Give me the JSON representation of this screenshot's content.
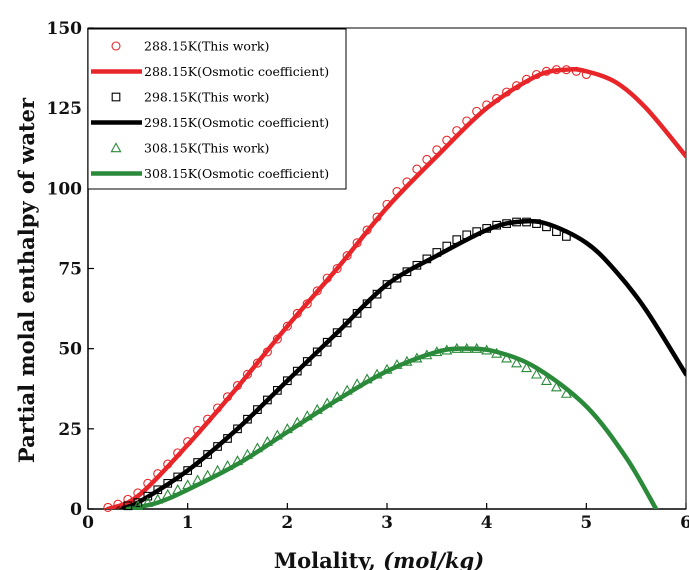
{
  "chart_data": {
    "type": "scatter",
    "xlabel_prefix": "Molality, ",
    "xlabel_unit": "(mol/kg)",
    "ylabel": "Partial molal enthalpy of water",
    "xlim": [
      0,
      6
    ],
    "ylim": [
      0,
      150
    ],
    "xticks": [
      "0",
      "1",
      "2",
      "3",
      "4",
      "5",
      "6"
    ],
    "yticks": [
      "0",
      "25",
      "50",
      "75",
      "100",
      "125",
      "150"
    ],
    "grid": false,
    "legend_position": "top-left",
    "series": [
      {
        "name": "288.15K(This work)",
        "kind": "markers",
        "marker": "circle",
        "color": "#e8262a",
        "x": [
          0.2,
          0.3,
          0.4,
          0.5,
          0.6,
          0.7,
          0.8,
          0.9,
          1.0,
          1.1,
          1.2,
          1.3,
          1.4,
          1.5,
          1.6,
          1.7,
          1.8,
          1.9,
          2.0,
          2.1,
          2.2,
          2.3,
          2.4,
          2.5,
          2.6,
          2.7,
          2.8,
          2.9,
          3.0,
          3.1,
          3.2,
          3.3,
          3.4,
          3.5,
          3.6,
          3.7,
          3.8,
          3.9,
          4.0,
          4.1,
          4.2,
          4.3,
          4.4,
          4.5,
          4.6,
          4.7,
          4.8,
          4.9,
          5.0
        ],
        "y": [
          0.5,
          1.5,
          3,
          5,
          8,
          11,
          14,
          17.5,
          21,
          24.5,
          28,
          31.5,
          35,
          38.5,
          42,
          45.5,
          49,
          53,
          57,
          61,
          64,
          68,
          72,
          75,
          79,
          83,
          87,
          91,
          95,
          99,
          102,
          106,
          109,
          112,
          115,
          118,
          121,
          124,
          126,
          128,
          130,
          132,
          134,
          135.5,
          136.5,
          137,
          137,
          136.5,
          135.5
        ]
      },
      {
        "name": "288.15K(Osmotic coefficient)",
        "kind": "line",
        "color": "#e8262a",
        "x": [
          0.2,
          0.5,
          1.0,
          1.5,
          2.0,
          2.5,
          3.0,
          3.5,
          4.0,
          4.5,
          4.8,
          5.0,
          5.3,
          5.6,
          6.0
        ],
        "y": [
          0,
          4,
          20,
          38,
          57,
          75,
          94,
          110,
          125,
          135,
          137,
          136.5,
          133,
          125,
          110
        ]
      },
      {
        "name": "298.15K(This work)",
        "kind": "markers",
        "marker": "square",
        "color": "#000000",
        "x": [
          0.4,
          0.5,
          0.6,
          0.7,
          0.8,
          0.9,
          1.0,
          1.1,
          1.2,
          1.3,
          1.4,
          1.5,
          1.6,
          1.7,
          1.8,
          1.9,
          2.0,
          2.1,
          2.2,
          2.3,
          2.4,
          2.5,
          2.6,
          2.7,
          2.8,
          2.9,
          3.0,
          3.1,
          3.2,
          3.3,
          3.4,
          3.5,
          3.6,
          3.7,
          3.8,
          3.9,
          4.0,
          4.1,
          4.2,
          4.3,
          4.4,
          4.5,
          4.6,
          4.7,
          4.8
        ],
        "y": [
          1,
          2,
          4,
          6,
          8,
          10,
          12,
          14.5,
          17,
          19.5,
          22,
          25,
          28,
          31,
          34,
          37,
          40,
          43,
          46,
          49,
          52,
          55,
          58,
          61,
          64,
          67,
          70,
          72,
          74,
          76,
          78,
          80,
          82,
          84,
          85.5,
          86.5,
          87.5,
          88.5,
          89,
          89.5,
          89.5,
          89,
          88,
          86.5,
          85
        ]
      },
      {
        "name": "298.15K(Osmotic coefficient)",
        "kind": "line",
        "color": "#000000",
        "x": [
          0.3,
          0.5,
          1.0,
          1.5,
          2.0,
          2.5,
          3.0,
          3.5,
          4.0,
          4.3,
          4.6,
          5.0,
          5.3,
          5.6,
          6.0
        ],
        "y": [
          0,
          2,
          12,
          25,
          40,
          55,
          70,
          79,
          87,
          89.5,
          89,
          83,
          74,
          62,
          42
        ]
      },
      {
        "name": "308.15K(This work)",
        "kind": "markers",
        "marker": "triangle",
        "color": "#2a8a3a",
        "x": [
          0.5,
          0.6,
          0.7,
          0.8,
          0.9,
          1.0,
          1.1,
          1.2,
          1.3,
          1.4,
          1.5,
          1.6,
          1.7,
          1.8,
          1.9,
          2.0,
          2.1,
          2.2,
          2.3,
          2.4,
          2.5,
          2.6,
          2.7,
          2.8,
          2.9,
          3.0,
          3.1,
          3.2,
          3.3,
          3.4,
          3.5,
          3.6,
          3.7,
          3.8,
          3.9,
          4.0,
          4.1,
          4.2,
          4.3,
          4.4,
          4.5,
          4.6,
          4.7,
          4.8
        ],
        "y": [
          1,
          2,
          3,
          4.5,
          6,
          7.5,
          9,
          10.5,
          12,
          13.5,
          15,
          17,
          19,
          21,
          23,
          25,
          27,
          29,
          31,
          33,
          35,
          37,
          39,
          40.5,
          42,
          43.5,
          45,
          46,
          47,
          48,
          49,
          49.5,
          50,
          50,
          50,
          49.5,
          48.5,
          47,
          45.5,
          44,
          42,
          40,
          38,
          36
        ]
      },
      {
        "name": "308.15K(Osmotic coefficient)",
        "kind": "line",
        "color": "#2a8a3a",
        "x": [
          0.4,
          0.7,
          1.0,
          1.5,
          2.0,
          2.5,
          3.0,
          3.5,
          3.8,
          4.1,
          4.5,
          5.0,
          5.4,
          5.7
        ],
        "y": [
          0,
          2,
          6,
          14,
          24,
          34,
          43,
          49,
          50,
          49,
          44,
          32,
          16,
          0
        ]
      }
    ]
  }
}
